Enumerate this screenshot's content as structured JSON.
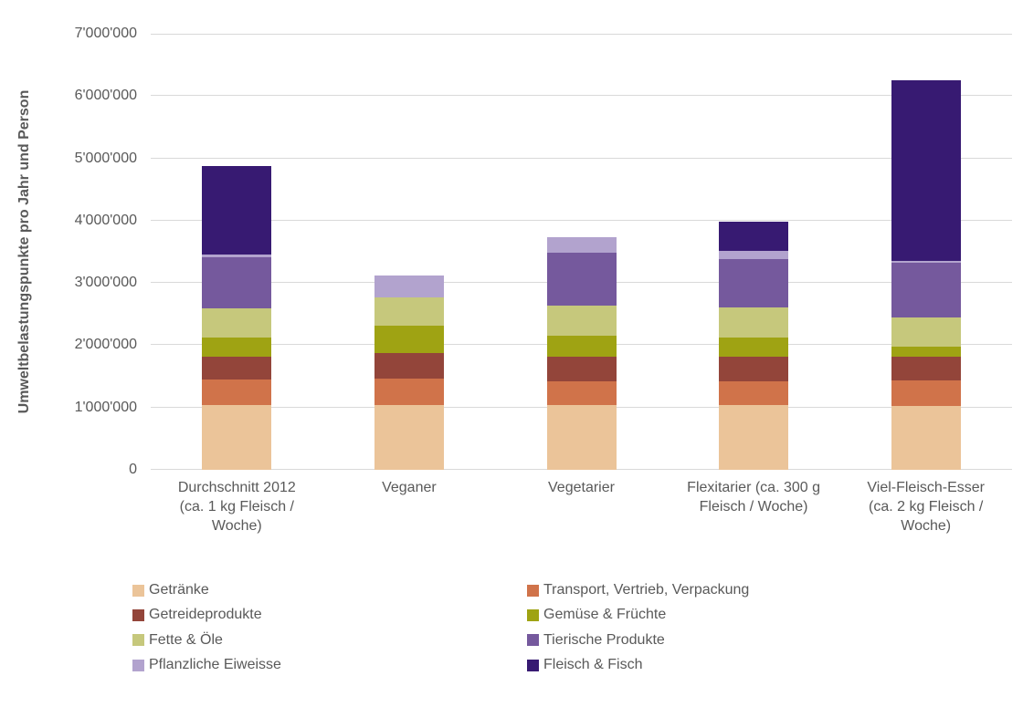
{
  "chart_data": {
    "type": "bar",
    "stacked": true,
    "title": "",
    "xlabel": "",
    "ylabel": "Umweltbelastungspunkte pro Jahr und Person",
    "ylim": [
      0,
      7000000
    ],
    "grid": true,
    "gridline_color": "#D9D9D9",
    "text_color": "#595959",
    "yticks": [
      {
        "value": 0,
        "label": "0"
      },
      {
        "value": 1000000,
        "label": "1'000'000"
      },
      {
        "value": 2000000,
        "label": "2'000'000"
      },
      {
        "value": 3000000,
        "label": "3'000'000"
      },
      {
        "value": 4000000,
        "label": "4'000'000"
      },
      {
        "value": 5000000,
        "label": "5'000'000"
      },
      {
        "value": 6000000,
        "label": "6'000'000"
      },
      {
        "value": 7000000,
        "label": "7'000'000"
      }
    ],
    "categories": [
      "Durchschnitt 2012 (ca. 1 kg Fleisch / Woche)",
      "Veganer",
      "Vegetarier",
      "Flexitarier (ca. 300 g Fleisch / Woche)",
      "Viel-Fleisch-Esser (ca. 2 kg Fleisch / Woche)"
    ],
    "category_keys": [
      "durchschnitt-2012",
      "veganer",
      "vegetarier",
      "flexitarier",
      "viel-fleisch-esser"
    ],
    "category_lines": [
      [
        "Durchschnitt 2012",
        "(ca. 1 kg Fleisch /",
        "Woche)"
      ],
      [
        "Veganer"
      ],
      [
        "Vegetarier"
      ],
      [
        "Flexitarier (ca. 300 g",
        "Fleisch / Woche)"
      ],
      [
        "Viel-Fleisch-Esser",
        "(ca. 2 kg Fleisch /",
        "Woche)"
      ]
    ],
    "series": [
      {
        "name": "Getränke",
        "color": "#EBC499",
        "values": [
          1040000,
          1040000,
          1040000,
          1040000,
          1030000
        ]
      },
      {
        "name": "Transport, Vertrieb, Verpackung",
        "color": "#D0734A",
        "values": [
          410000,
          430000,
          380000,
          380000,
          400000
        ]
      },
      {
        "name": "Getreideprodukte",
        "color": "#93453A",
        "values": [
          370000,
          410000,
          390000,
          390000,
          390000
        ]
      },
      {
        "name": "Gemüse & Früchte",
        "color": "#9FA313",
        "values": [
          310000,
          430000,
          350000,
          310000,
          150000
        ]
      },
      {
        "name": "Fette & Öle",
        "color": "#C6C87C",
        "values": [
          460000,
          460000,
          470000,
          480000,
          470000
        ]
      },
      {
        "name": "Tierische Produkte",
        "color": "#75599D",
        "values": [
          820000,
          0,
          850000,
          790000,
          890000
        ]
      },
      {
        "name": "Pflanzliche Eiweisse",
        "color": "#B2A3CE",
        "values": [
          40000,
          350000,
          250000,
          120000,
          30000
        ]
      },
      {
        "name": "Fleisch & Fisch",
        "color": "#371A72",
        "values": [
          1420000,
          0,
          0,
          470000,
          2890000
        ]
      }
    ],
    "totals": [
      4870000,
      3120000,
      3730000,
      3980000,
      6250000
    ],
    "legend": {
      "position": "bottom",
      "columns": [
        [
          "Getränke",
          "Getreideprodukte",
          "Fette & Öle",
          "Pflanzliche Eiweisse"
        ],
        [
          "Transport, Vertrieb, Verpackung",
          "Gemüse & Früchte",
          "Tierische Produkte",
          "Fleisch & Fisch"
        ]
      ]
    }
  }
}
